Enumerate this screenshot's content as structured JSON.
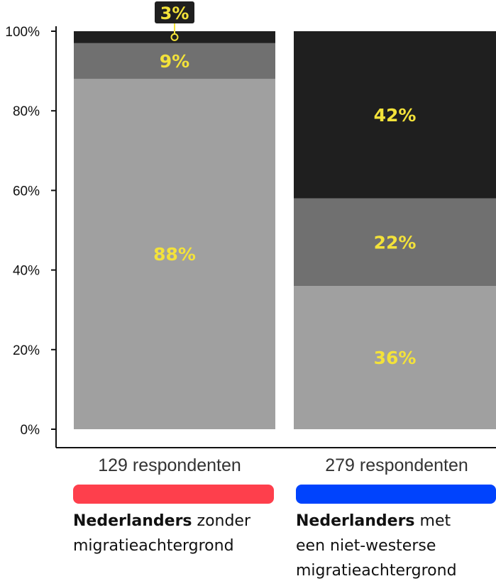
{
  "chart_data": {
    "type": "bar",
    "stacked": true,
    "y_ticks": [
      "0%",
      "20%",
      "40%",
      "60%",
      "80%",
      "100%"
    ],
    "ylim": [
      0,
      100
    ],
    "categories": [
      {
        "respondents": "129 respondenten",
        "title_bold": "Nederlanders",
        "title_rest": "zonder",
        "title_line2": "migratieachtergrond",
        "title_line3": "",
        "key_color": "#fe3f4c"
      },
      {
        "respondents": "279 respondenten",
        "title_bold": "Nederlanders",
        "title_rest": "met",
        "title_line2": "een niet-westerse",
        "title_line3": "migratieachtergrond",
        "key_color": "#0043fd"
      }
    ],
    "series": [
      {
        "color": "#a0a0a0",
        "values": [
          88,
          36
        ],
        "labels": [
          "88%",
          "36%"
        ]
      },
      {
        "color": "#707070",
        "values": [
          9,
          22
        ],
        "labels": [
          "9%",
          "22%"
        ]
      },
      {
        "color": "#1f1f1f",
        "values": [
          3,
          42
        ],
        "labels": [
          "3%",
          "42%"
        ]
      }
    ]
  }
}
